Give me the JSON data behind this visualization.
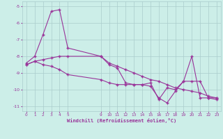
{
  "xlabel": "Windchill (Refroidissement éolien,°C)",
  "ylabel": "",
  "background_color": "#cceee8",
  "grid_color": "#aacccc",
  "line_color": "#993399",
  "xlim": [
    -0.5,
    23.5
  ],
  "ylim": [
    -11.3,
    -4.7
  ],
  "yticks": [
    -11,
    -10,
    -9,
    -8,
    -7,
    -6,
    -5
  ],
  "xtick_positions": [
    0,
    1,
    2,
    3,
    4,
    5,
    9,
    10,
    11,
    12,
    13,
    14,
    15,
    16,
    17,
    18,
    19,
    20,
    21,
    22,
    23
  ],
  "xtick_labels": [
    "0",
    "1",
    "2",
    "3",
    "4",
    "5",
    "9",
    "10",
    "11",
    "12",
    "13",
    "14",
    "15",
    "16",
    "17",
    "18",
    "19",
    "20",
    "21",
    "22",
    "23"
  ],
  "line1_x": [
    0,
    1,
    2,
    3,
    4,
    5,
    9,
    10,
    11,
    12,
    13,
    14,
    15,
    16,
    17,
    18,
    19,
    20,
    21,
    22,
    23
  ],
  "line1_y": [
    -8.4,
    -8.0,
    -6.7,
    -5.3,
    -5.2,
    -7.5,
    -8.0,
    -8.5,
    -8.7,
    -9.6,
    -9.7,
    -9.7,
    -9.6,
    -10.6,
    -9.9,
    -10.0,
    -9.5,
    -8.0,
    -10.5,
    -10.5,
    -10.5
  ],
  "line2_x": [
    0,
    1,
    2,
    3,
    4,
    5,
    9,
    10,
    11,
    12,
    13,
    14,
    15,
    16,
    17,
    18,
    19,
    20,
    21,
    22,
    23
  ],
  "line2_y": [
    -8.5,
    -8.3,
    -8.2,
    -8.1,
    -8.0,
    -8.0,
    -8.0,
    -8.4,
    -8.6,
    -8.8,
    -9.0,
    -9.2,
    -9.4,
    -9.5,
    -9.7,
    -9.9,
    -10.0,
    -10.1,
    -10.2,
    -10.4,
    -10.5
  ],
  "line3_x": [
    0,
    1,
    2,
    3,
    4,
    5,
    9,
    10,
    11,
    12,
    13,
    14,
    15,
    16,
    17,
    18,
    19,
    20,
    21,
    22,
    23
  ],
  "line3_y": [
    -8.5,
    -8.3,
    -8.5,
    -8.6,
    -8.8,
    -9.1,
    -9.4,
    -9.6,
    -9.7,
    -9.7,
    -9.7,
    -9.7,
    -9.8,
    -10.5,
    -10.8,
    -10.1,
    -9.5,
    -9.5,
    -9.5,
    -10.5,
    -10.6
  ]
}
